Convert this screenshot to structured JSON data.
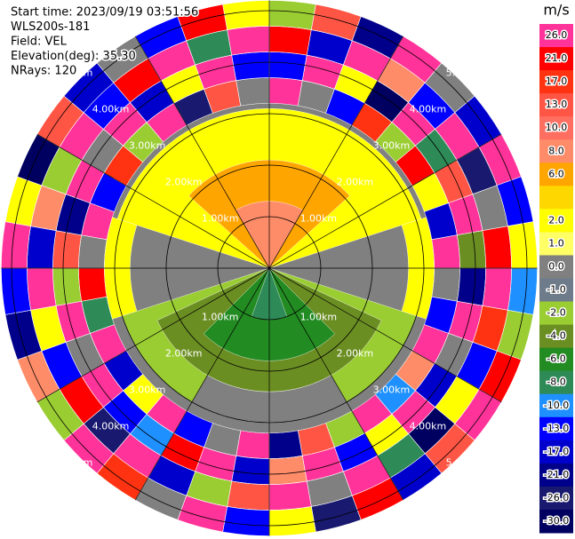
{
  "header": {
    "lines": [
      "Start time: 2023/09/19 03:51:56",
      "WLS200s-181",
      "Field: VEL",
      "Elevation(deg): 35.30",
      "NRays: 120"
    ]
  },
  "chart_data": {
    "type": "ppi",
    "range_rings": [
      {
        "value": 1,
        "label": "1.00km"
      },
      {
        "value": 2,
        "label": "2.00km"
      },
      {
        "value": 3,
        "label": "3.00km"
      },
      {
        "value": 4,
        "label": "4.00km"
      },
      {
        "value": 5,
        "label": "5.00km"
      }
    ],
    "sectors": [
      {
        "r": [
          0,
          3.2
        ],
        "az": [
          0,
          360
        ],
        "value": 0
      },
      {
        "r": [
          0,
          3.1
        ],
        "az": [
          -72,
          72
        ],
        "value": 2
      },
      {
        "r": [
          2.7,
          3.2
        ],
        "az": [
          72,
          108
        ],
        "value": 2
      },
      {
        "r": [
          2.7,
          3.2
        ],
        "az": [
          252,
          288
        ],
        "value": 2
      },
      {
        "r": [
          0,
          2.1
        ],
        "az": [
          -48,
          48
        ],
        "value": 6
      },
      {
        "r": [
          0,
          1.3
        ],
        "az": [
          -30,
          30
        ],
        "value": 8
      },
      {
        "r": [
          0,
          3.0
        ],
        "az": [
          108,
          252
        ],
        "value": -2
      },
      {
        "r": [
          0,
          2.4
        ],
        "az": [
          115,
          245
        ],
        "value": -4
      },
      {
        "r": [
          2.4,
          3.0
        ],
        "az": [
          150,
          210
        ],
        "value": 0
      },
      {
        "r": [
          0,
          1.8
        ],
        "az": [
          135,
          225
        ],
        "value": -6
      },
      {
        "r": [
          0,
          1.0
        ],
        "az": [
          160,
          200
        ],
        "value": -8
      }
    ],
    "noise": {
      "r": [
        3.2,
        3.7,
        4.2,
        4.7,
        5.2
      ],
      "values": [
        [
          26,
          -13,
          21,
          -2
        ],
        [
          0,
          26,
          -17,
          13
        ],
        [
          -13,
          2,
          26,
          -21
        ],
        [
          17,
          -30,
          8,
          26
        ],
        [
          -2,
          26,
          -13,
          0
        ],
        [
          21,
          -8,
          26,
          -17
        ],
        [
          2,
          13,
          -26,
          26
        ],
        [
          -17,
          26,
          0,
          -13
        ],
        [
          26,
          -4,
          21,
          2
        ],
        [
          0,
          -21,
          26,
          -10
        ],
        [
          -13,
          26,
          17,
          -2
        ],
        [
          26,
          0,
          -13,
          21
        ],
        [
          8,
          -17,
          2,
          26
        ],
        [
          -10,
          26,
          -30,
          13
        ],
        [
          26,
          2,
          -8,
          -17
        ],
        [
          -2,
          -13,
          26,
          21
        ],
        [
          13,
          26,
          0,
          -26
        ],
        [
          -21,
          8,
          26,
          2
        ],
        [
          26,
          -17,
          13,
          -13
        ],
        [
          0,
          26,
          -2,
          26
        ],
        [
          -13,
          21,
          -17,
          0
        ],
        [
          26,
          -10,
          26,
          17
        ],
        [
          2,
          -13,
          -26,
          26
        ],
        [
          -17,
          26,
          21,
          -2
        ],
        [
          26,
          0,
          -13,
          8
        ],
        [
          -8,
          26,
          2,
          -21
        ],
        [
          21,
          -2,
          26,
          -13
        ],
        [
          0,
          13,
          -17,
          26
        ],
        [
          26,
          -21,
          8,
          2
        ],
        [
          -13,
          26,
          -2,
          -30
        ],
        [
          17,
          0,
          26,
          13
        ],
        [
          -2,
          26,
          -13,
          -17
        ],
        [
          26,
          -17,
          21,
          0
        ],
        [
          -26,
          2,
          26,
          -13
        ],
        [
          13,
          26,
          -8,
          21
        ],
        [
          0,
          -13,
          26,
          2
        ]
      ]
    },
    "colorbar": {
      "title": "m/s",
      "ticks": [
        {
          "value": 26,
          "label": "26.0"
        },
        {
          "value": 21,
          "label": "21.0"
        },
        {
          "value": 17,
          "label": "17.0"
        },
        {
          "value": 13,
          "label": "13.0"
        },
        {
          "value": 10,
          "label": "10.0"
        },
        {
          "value": 8,
          "label": "8.0"
        },
        {
          "value": 6,
          "label": "6.0"
        },
        {
          "value": 4,
          "label": null
        },
        {
          "value": 2,
          "label": "2.0"
        },
        {
          "value": 1,
          "label": "1.0"
        },
        {
          "value": 0,
          "label": "0.0"
        },
        {
          "value": -1,
          "label": "-1.0"
        },
        {
          "value": -2,
          "label": "-2.0"
        },
        {
          "value": -4,
          "label": "-4.0"
        },
        {
          "value": -6,
          "label": "-6.0"
        },
        {
          "value": -8,
          "label": "-8.0"
        },
        {
          "value": -10,
          "label": "-10.0"
        },
        {
          "value": -13,
          "label": "-13.0"
        },
        {
          "value": -17,
          "label": "-17.0"
        },
        {
          "value": -21,
          "label": "-21.0"
        },
        {
          "value": -26,
          "label": "-26.0"
        },
        {
          "value": -30,
          "label": "-30.0"
        }
      ],
      "colors": [
        "#ff3399",
        "#ff0000",
        "#ff3311",
        "#ff5544",
        "#ff6f61",
        "#ff8c69",
        "#ffa500",
        "#ffd700",
        "#ffff00",
        "#ffff66",
        "#808080",
        "#6e7b8b",
        "#9acd32",
        "#6b8e23",
        "#228b22",
        "#2e8b57",
        "#1e90ff",
        "#0000ff",
        "#0000cd",
        "#00008b",
        "#191970",
        "#000060"
      ]
    }
  }
}
